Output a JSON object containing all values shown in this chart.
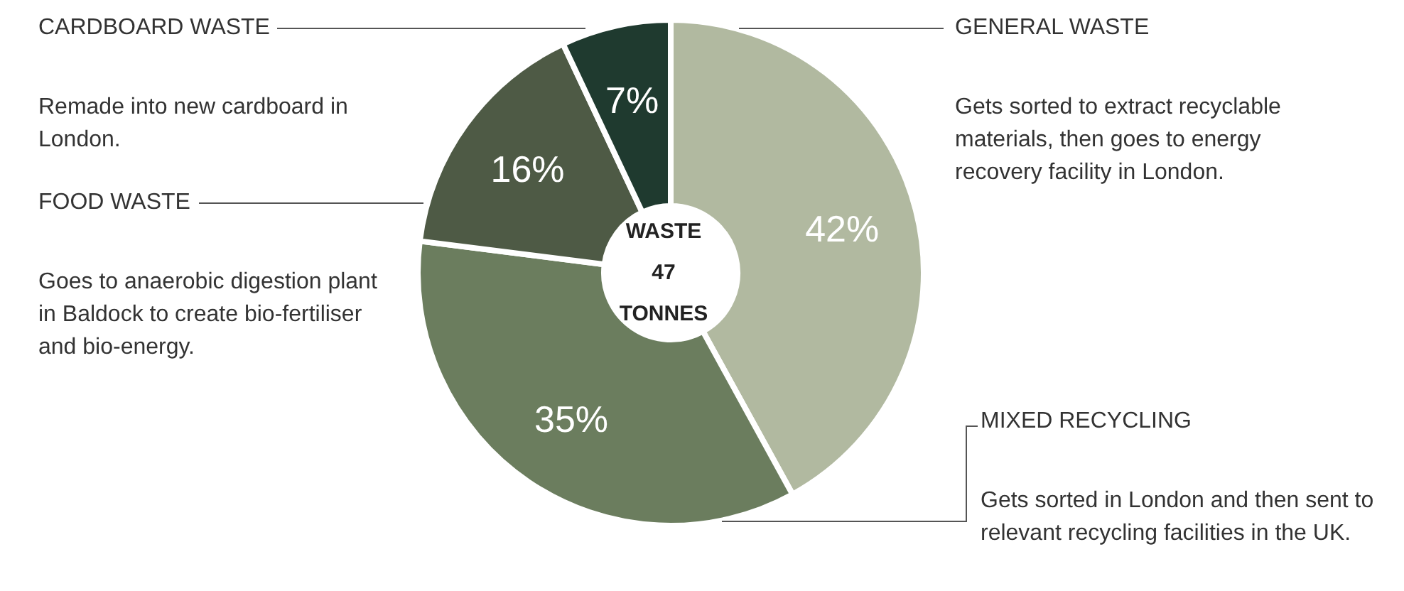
{
  "chart_data": {
    "type": "donut",
    "categories": [
      "GENERAL WASTE",
      "MIXED RECYCLING",
      "FOOD WASTE",
      "CARDBOARD WASTE"
    ],
    "values": [
      42,
      35,
      16,
      7
    ],
    "value_labels": [
      "42%",
      "35%",
      "16%",
      "7%"
    ],
    "colors": [
      "#b1b9a0",
      "#6b7d5e",
      "#4e5a45",
      "#1f3a2f"
    ],
    "annotations": [
      "Gets sorted to extract recyclable materials, then goes to energy recovery facility in London.",
      "Gets sorted in London and then sent to relevant recycling facilities in the UK.",
      "Goes to anaerobic digestion plant in Baldock to create bio-fertiliser and bio-energy.",
      "Remade into new cardboard in London.",
      "WASTE",
      "47",
      "TONNES"
    ]
  }
}
